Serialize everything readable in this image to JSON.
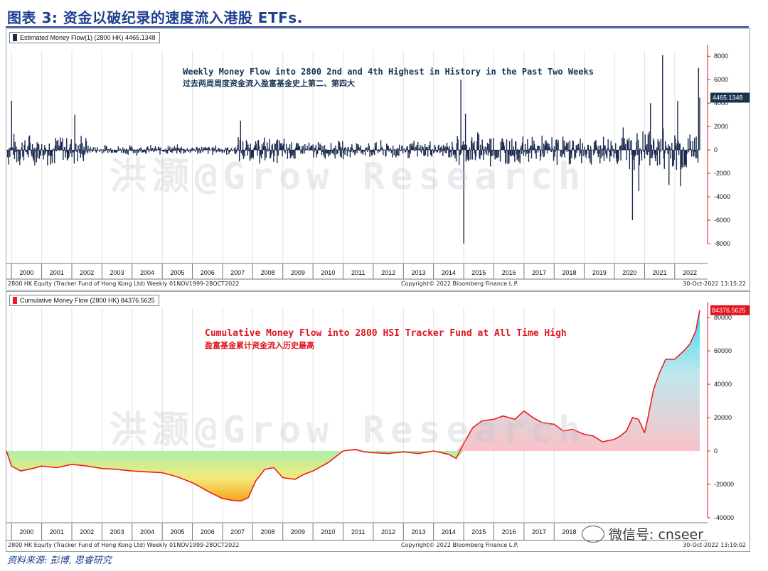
{
  "figure_title": "图表 3: 资金以破纪录的速度流入港股 ETFs.",
  "source_note": "资料来源: 彭博, 思睿研究",
  "watermark": "洪灏@Grow Research",
  "wechat_label": "微信号: cnseer",
  "colors": {
    "bar": "#1b2a4e",
    "line": "#ef1c1c",
    "accent_title": "#1f3f8f",
    "axis_red": "#e0141e",
    "highlight_blue": "#17344f",
    "highlight_red": "#e0141e"
  },
  "chart_data": [
    {
      "type": "bar",
      "legend": "Estimated Money Flow(1) (2800 HK)  4465.1348",
      "last_value_label": "4465.1348",
      "annotation_en": "Weekly Money Flow into 2800 2nd and 4th Highest in History in the Past Two Weeks",
      "annotation_cn": "过去两周周度资金流入盈富基金史上第二、第四大",
      "x_ticks": [
        "2000",
        "2001",
        "2002",
        "2003",
        "2004",
        "2005",
        "2006",
        "2007",
        "2008",
        "2009",
        "2010",
        "2011",
        "2012",
        "2013",
        "2014",
        "2015",
        "2016",
        "2017",
        "2018",
        "2019",
        "2020",
        "2021",
        "2022"
      ],
      "y_ticks": [
        8000,
        6000,
        4000,
        2000,
        0,
        -2000,
        -4000,
        -6000,
        -8000
      ],
      "ylim": [
        -8000,
        8500
      ],
      "xlim": [
        1999.83,
        2022.83
      ],
      "notable_weeks": [
        {
          "x": 2000.0,
          "value": 4200
        },
        {
          "x": 2002.1,
          "value": 3000
        },
        {
          "x": 2007.6,
          "value": 2500
        },
        {
          "x": 2014.9,
          "value": 6000
        },
        {
          "x": 2015.0,
          "value": -8000
        },
        {
          "x": 2015.05,
          "value": 3100
        },
        {
          "x": 2020.6,
          "value": -6000
        },
        {
          "x": 2020.8,
          "value": -3500
        },
        {
          "x": 2021.2,
          "value": 4000
        },
        {
          "x": 2021.6,
          "value": 8100
        },
        {
          "x": 2021.8,
          "value": -3000
        },
        {
          "x": 2022.1,
          "value": 4200
        },
        {
          "x": 2022.2,
          "value": -3100
        },
        {
          "x": 2022.79,
          "value": 7000
        },
        {
          "x": 2022.83,
          "value": 4465.1348
        }
      ],
      "footer_left": "2800 HK Equity (Tracker Fund of Hong Kong Ltd)  Weekly 01NOV1999-28OCT2022",
      "footer_center": "Copyright© 2022 Bloomberg Finance L.P.",
      "footer_right": "30-Oct-2022 13:15:22"
    },
    {
      "type": "area",
      "legend": "Cumulative Money Flow (2800 HK)  84376.5625",
      "last_value_label": "84376.5625",
      "annotation_en": "Cumulative Money Flow into 2800 HSI Tracker Fund at All Time High",
      "annotation_cn": "盈富基金累计资金流入历史最高",
      "x_ticks": [
        "2000",
        "2001",
        "2002",
        "2003",
        "2004",
        "2005",
        "2006",
        "2007",
        "2008",
        "2009",
        "2010",
        "2011",
        "2012",
        "2013",
        "2014",
        "2015",
        "2016",
        "2017",
        "2018"
      ],
      "y_ticks": [
        80000,
        60000,
        40000,
        20000,
        0,
        -20000,
        -40000
      ],
      "ylim": [
        -40000,
        86000
      ],
      "xlim": [
        1999.83,
        2022.83
      ],
      "series": [
        {
          "x": [
            1999.83,
            2000.0,
            2000.3,
            2000.7,
            2001.0,
            2001.5,
            2002.0,
            2002.5,
            2003.0,
            2003.5,
            2004.0,
            2004.5,
            2005.0,
            2005.5,
            2006.0,
            2006.3,
            2006.6,
            2007.0,
            2007.3,
            2007.6,
            2007.85,
            2008.1,
            2008.4,
            2008.7,
            2009.0,
            2009.4,
            2009.7,
            2010.0,
            2010.5,
            2011.0,
            2011.4,
            2011.7,
            2012.0,
            2012.5,
            2013.0,
            2013.5,
            2014.0,
            2014.5,
            2014.75,
            2015.0,
            2015.3,
            2015.6,
            2016.0,
            2016.3,
            2016.7,
            2017.0,
            2017.3,
            2017.6,
            2018.0,
            2018.3,
            2018.6,
            2019.0,
            2019.3,
            2019.6,
            2020.0,
            2020.2,
            2020.4,
            2020.6,
            2020.8,
            2021.0,
            2021.1,
            2021.3,
            2021.5,
            2021.7,
            2022.0,
            2022.3,
            2022.5,
            2022.7,
            2022.83
          ],
          "values": [
            0,
            -9000,
            -12000,
            -10500,
            -9000,
            -10000,
            -8000,
            -9000,
            -10500,
            -11000,
            -12000,
            -12500,
            -13000,
            -15500,
            -19000,
            -22000,
            -25000,
            -28500,
            -29500,
            -30000,
            -28000,
            -18000,
            -11000,
            -10000,
            -16000,
            -17000,
            -14000,
            -12000,
            -7000,
            0,
            1000,
            -500,
            -1000,
            -1500,
            -500,
            -1500,
            0,
            -2000,
            -4500,
            4500,
            14000,
            18000,
            19000,
            21000,
            19000,
            24000,
            20000,
            17000,
            16000,
            12000,
            13000,
            10000,
            9000,
            5500,
            7000,
            9000,
            12000,
            20000,
            19000,
            11000,
            19000,
            37000,
            47000,
            55000,
            55000,
            60000,
            64000,
            72000,
            84376.5625
          ],
          "name": "Cumulative Money Flow (2800 HK)"
        }
      ],
      "footer_left": "2800 HK Equity (Tracker Fund of Hong Kong Ltd)  Weekly 01NOV1999-28OCT2022",
      "footer_center": "Copyright© 2022 Bloomberg Finance L.P.",
      "footer_right": "30-Oct-2022 13:10:02"
    }
  ]
}
